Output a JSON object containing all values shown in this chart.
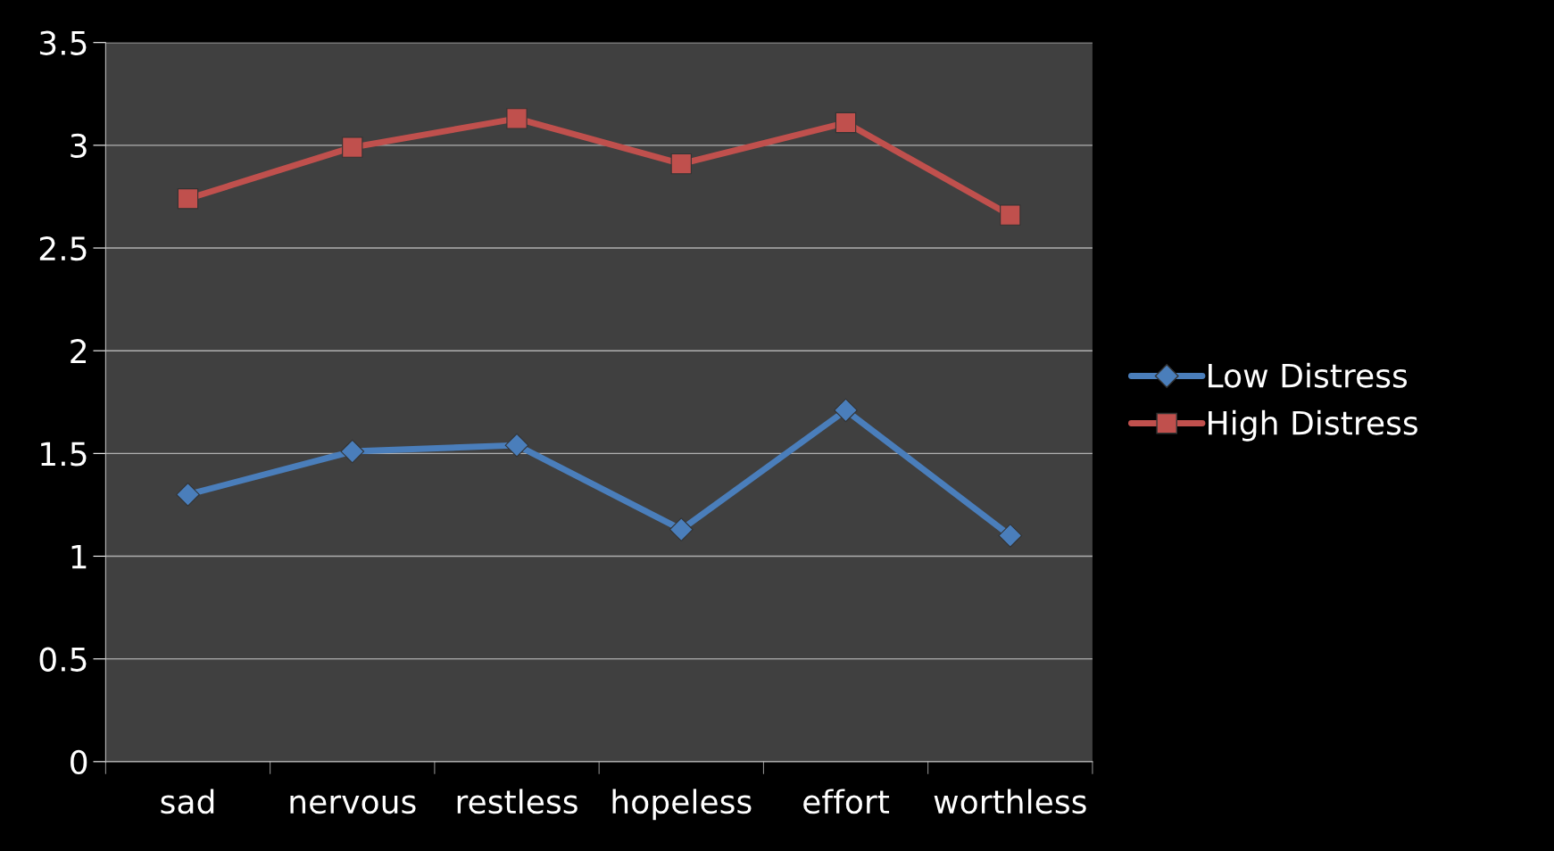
{
  "chart_data": {
    "type": "line",
    "categories": [
      "sad",
      "nervous",
      "restless",
      "hopeless",
      "effort",
      "worthless"
    ],
    "series": [
      {
        "name": "Low Distress",
        "color": "#4a7ebb",
        "marker": "diamond",
        "values": [
          1.3,
          1.51,
          1.54,
          1.13,
          1.71,
          1.1
        ]
      },
      {
        "name": "High Distress",
        "color": "#c0504d",
        "marker": "square",
        "values": [
          2.74,
          2.99,
          3.13,
          2.91,
          3.11,
          2.66
        ]
      }
    ],
    "ylim": [
      0,
      3.5
    ],
    "yticks": [
      0,
      0.5,
      1,
      1.5,
      2,
      2.5,
      3,
      3.5
    ],
    "grid": "y",
    "legend": "right"
  }
}
